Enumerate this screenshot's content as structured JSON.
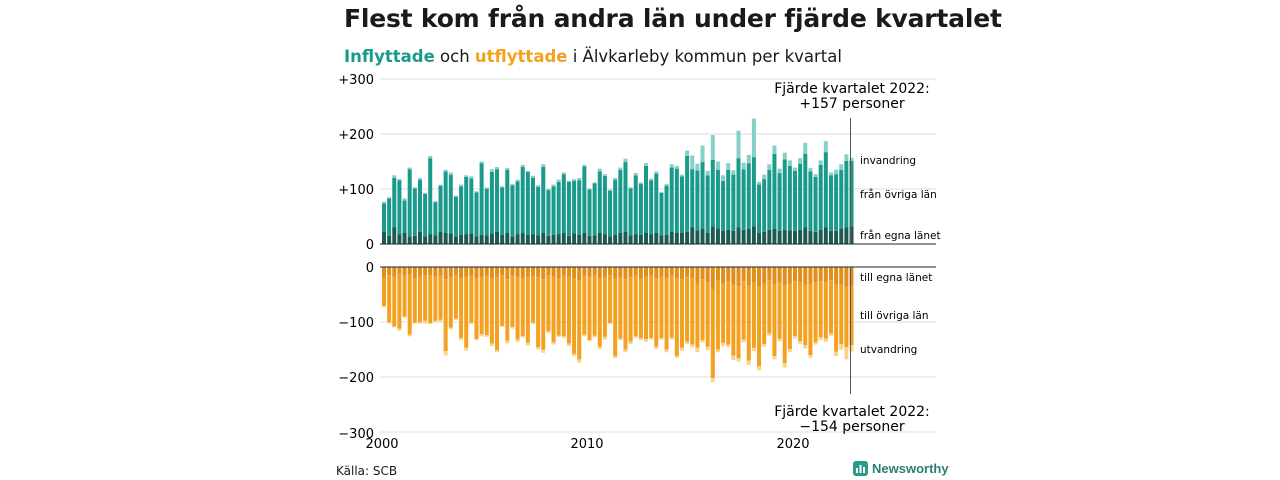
{
  "title": "Flest kom från andra län under fjärde kvartalet",
  "subtitle": {
    "part_in": "Inflyttade",
    "part_mid": " och ",
    "part_out": "utflyttade",
    "part_end": " i Älvkarleby kommun per kvartal"
  },
  "source": "Källa: SCB",
  "logo_text": "Newsworthy",
  "colors": {
    "in_own": "#1d5a52",
    "in_other": "#1a9a8a",
    "immigration": "#86d0c8",
    "out_own": "#e08e1c",
    "out_other": "#f4a020",
    "emigration": "#f9d48e"
  },
  "chart_data": {
    "type": "bar",
    "stacked": true,
    "x_start": 2000,
    "quarters": 92,
    "x_ticks": [
      "2000",
      "2010",
      "2020"
    ],
    "y_top_ticks": [
      "+300",
      "+200",
      "+100",
      "0"
    ],
    "y_bottom_ticks": [
      "0",
      "−100",
      "−200",
      "−300"
    ],
    "ylim_top": [
      0,
      300
    ],
    "ylim_bottom": [
      -300,
      0
    ],
    "series_labels": {
      "invandring": "invandring",
      "fran_ovriga": "från övriga län",
      "fran_egna": "från egna länet",
      "till_egna": "till egna länet",
      "till_ovriga": "till övriga län",
      "utvandring": "utvandring"
    },
    "annotation_top": {
      "line1": "Fjärde kvartalet 2022:",
      "line2": "+157 personer"
    },
    "annotation_bottom": {
      "line1": "Fjärde kvartalet 2022:",
      "line2": "−154 personer"
    },
    "inflow_total": [
      77,
      85,
      125,
      118,
      83,
      139,
      103,
      120,
      93,
      160,
      78,
      108,
      135,
      130,
      88,
      108,
      125,
      123,
      96,
      150,
      103,
      136,
      140,
      105,
      138,
      109,
      117,
      144,
      133,
      124,
      107,
      145,
      100,
      108,
      117,
      130,
      115,
      118,
      120,
      144,
      101,
      112,
      137,
      127,
      99,
      120,
      139,
      155,
      103,
      129,
      112,
      147,
      119,
      132,
      95,
      109,
      145,
      142,
      126,
      170,
      161,
      146,
      179,
      133,
      198,
      150,
      125,
      147,
      134,
      206,
      148,
      162,
      228,
      113,
      126,
      145,
      179,
      137,
      166,
      152,
      139,
      156,
      184,
      138,
      127,
      152,
      187,
      130,
      135,
      145,
      163,
      157
    ],
    "inflow_own": [
      22,
      15,
      30,
      18,
      20,
      14,
      15,
      22,
      14,
      18,
      16,
      22,
      20,
      19,
      14,
      17,
      18,
      19,
      14,
      17,
      16,
      19,
      22,
      17,
      20,
      14,
      18,
      20,
      17,
      18,
      16,
      20,
      15,
      17,
      18,
      20,
      15,
      19,
      17,
      20,
      15,
      16,
      20,
      18,
      14,
      17,
      20,
      22,
      16,
      18,
      17,
      20,
      18,
      20,
      16,
      17,
      22,
      20,
      20,
      22,
      30,
      25,
      28,
      20,
      32,
      28,
      24,
      26,
      24,
      30,
      26,
      28,
      32,
      20,
      22,
      26,
      28,
      24,
      26,
      25,
      24,
      26,
      30,
      24,
      22,
      26,
      30,
      24,
      24,
      28,
      30,
      32
    ],
    "immigration": [
      3,
      2,
      5,
      2,
      4,
      3,
      2,
      3,
      2,
      4,
      2,
      2,
      3,
      4,
      2,
      3,
      3,
      4,
      2,
      3,
      3,
      5,
      4,
      2,
      3,
      2,
      3,
      4,
      2,
      4,
      3,
      5,
      2,
      3,
      4,
      3,
      2,
      3,
      4,
      3,
      2,
      2,
      5,
      3,
      2,
      3,
      4,
      6,
      2,
      4,
      3,
      5,
      3,
      4,
      2,
      3,
      6,
      5,
      3,
      10,
      25,
      12,
      30,
      8,
      45,
      15,
      10,
      12,
      8,
      50,
      12,
      15,
      70,
      5,
      8,
      10,
      15,
      8,
      12,
      10,
      6,
      10,
      20,
      6,
      5,
      8,
      20,
      5,
      8,
      10,
      12,
      6
    ],
    "outflow_total": [
      -73,
      -103,
      -110,
      -116,
      -92,
      -126,
      -103,
      -103,
      -103,
      -104,
      -101,
      -100,
      -161,
      -113,
      -96,
      -133,
      -152,
      -104,
      -133,
      -126,
      -127,
      -144,
      -155,
      -109,
      -139,
      -112,
      -136,
      -128,
      -143,
      -104,
      -150,
      -156,
      -120,
      -141,
      -127,
      -129,
      -144,
      -162,
      -174,
      -126,
      -135,
      -128,
      -149,
      -132,
      -104,
      -166,
      -133,
      -155,
      -140,
      -129,
      -133,
      -136,
      -132,
      -149,
      -132,
      -155,
      -132,
      -165,
      -152,
      -140,
      -146,
      -155,
      -137,
      -151,
      -210,
      -155,
      -144,
      -145,
      -169,
      -172,
      -137,
      -178,
      -153,
      -188,
      -145,
      -125,
      -168,
      -135,
      -183,
      -155,
      -130,
      -140,
      -148,
      -165,
      -141,
      -133,
      -136,
      -125,
      -162,
      -150,
      -168,
      -154
    ],
    "outflow_own": [
      -20,
      -15,
      -18,
      -14,
      -16,
      -14,
      -20,
      -18,
      -16,
      -15,
      -18,
      -16,
      -22,
      -18,
      -15,
      -20,
      -18,
      -16,
      -20,
      -18,
      -16,
      -20,
      -18,
      -15,
      -22,
      -16,
      -18,
      -20,
      -18,
      -16,
      -18,
      -22,
      -16,
      -18,
      -20,
      -16,
      -18,
      -20,
      -24,
      -16,
      -18,
      -16,
      -20,
      -18,
      -15,
      -20,
      -18,
      -22,
      -18,
      -16,
      -20,
      -18,
      -16,
      -20,
      -18,
      -20,
      -16,
      -20,
      -22,
      -18,
      -20,
      -30,
      -22,
      -28,
      -40,
      -24,
      -30,
      -26,
      -32,
      -35,
      -26,
      -34,
      -28,
      -36,
      -30,
      -24,
      -32,
      -28,
      -34,
      -30,
      -26,
      -28,
      -32,
      -30,
      -28,
      -26,
      -28,
      -24,
      -32,
      -30,
      -36,
      -34
    ],
    "emigration": [
      -2,
      -3,
      -2,
      -4,
      -2,
      -3,
      -2,
      -3,
      -5,
      -2,
      -3,
      -4,
      -8,
      -3,
      -2,
      -4,
      -5,
      -3,
      -2,
      -4,
      -3,
      -5,
      -4,
      -2,
      -5,
      -3,
      -4,
      -2,
      -5,
      -3,
      -4,
      -6,
      -3,
      -4,
      -2,
      -3,
      -5,
      -4,
      -6,
      -3,
      -2,
      -3,
      -4,
      -5,
      -2,
      -4,
      -3,
      -5,
      -4,
      -3,
      -4,
      -5,
      -3,
      -4,
      -3,
      -5,
      -4,
      -3,
      -5,
      -4,
      -5,
      -8,
      -4,
      -6,
      -8,
      -5,
      -6,
      -4,
      -8,
      -6,
      -5,
      -8,
      -6,
      -8,
      -5,
      -4,
      -6,
      -5,
      -8,
      -6,
      -4,
      -5,
      -6,
      -5,
      -4,
      -5,
      -6,
      -4,
      -8,
      -10,
      -22,
      -12
    ]
  }
}
